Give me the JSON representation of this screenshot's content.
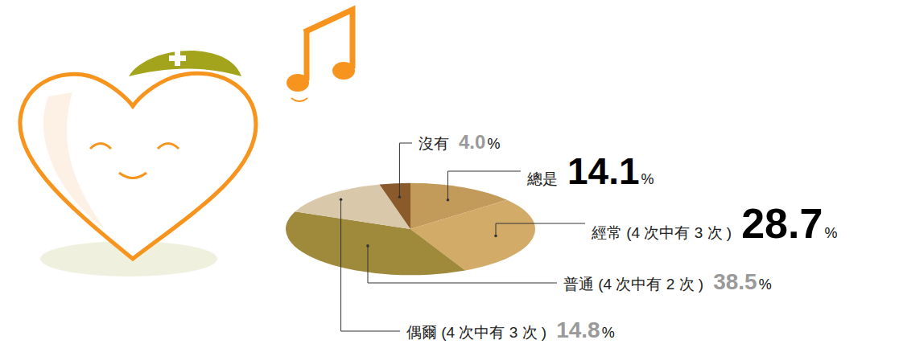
{
  "chart_data": {
    "type": "pie",
    "categories": [
      "總是",
      "經常 (4 次中有 3 次 )",
      "普通 (4 次中有 2 次 )",
      "偶爾 (4 次中有 3 次 )",
      "沒有"
    ],
    "values": [
      14.1,
      28.7,
      38.5,
      14.8,
      4.0
    ],
    "value_labels": [
      "14.1%",
      "28.7%",
      "38.5%",
      "14.8%",
      "4.0%"
    ],
    "colors": [
      "#c29b5b",
      "#d3ab68",
      "#9f8a3b",
      "#d9c9aa",
      "#8b5a2b"
    ],
    "data_labels": true
  }
}
